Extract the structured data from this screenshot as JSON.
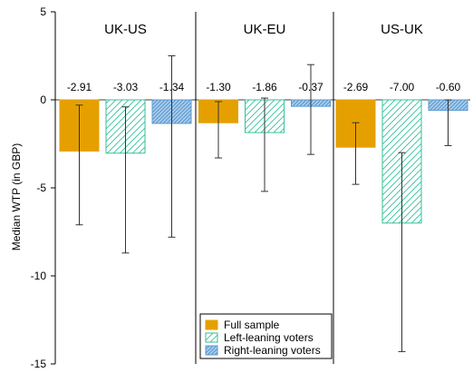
{
  "chart_data": {
    "type": "bar",
    "ylabel": "Median WTP (in GBP)",
    "ylim": [
      -15,
      5
    ],
    "yticks": [
      5,
      0,
      -5,
      -10,
      -15
    ],
    "panels": [
      "UK-US",
      "UK-EU",
      "US-UK"
    ],
    "series": [
      {
        "name": "Full sample",
        "color": "#E5A000",
        "pattern": "solid",
        "values": [
          -2.91,
          -1.3,
          -2.69
        ],
        "labels": [
          "-2.91",
          "-1.30",
          "-2.69"
        ],
        "ci_low": [
          -7.1,
          -3.3,
          -4.8
        ],
        "ci_high": [
          -0.3,
          -0.1,
          -1.3
        ]
      },
      {
        "name": "Left-leaning voters",
        "color": "#33C29A",
        "pattern": "hatch",
        "values": [
          -3.03,
          -1.86,
          -7.0
        ],
        "labels": [
          "-3.03",
          "-1.86",
          "-7.00"
        ],
        "ci_low": [
          -8.7,
          -5.2,
          -14.3
        ],
        "ci_high": [
          -0.4,
          0.1,
          -3.0
        ]
      },
      {
        "name": "Right-leaning voters",
        "color": "#5A9BD5",
        "pattern": "dense-hatch",
        "values": [
          -1.34,
          -0.37,
          -0.6
        ],
        "labels": [
          "-1.34",
          "-0.37",
          "-0.60"
        ],
        "ci_low": [
          -7.8,
          -3.1,
          -2.6
        ],
        "ci_high": [
          2.5,
          2.0,
          0.0
        ]
      }
    ],
    "legend_position": "bottom-center",
    "grid": false
  }
}
